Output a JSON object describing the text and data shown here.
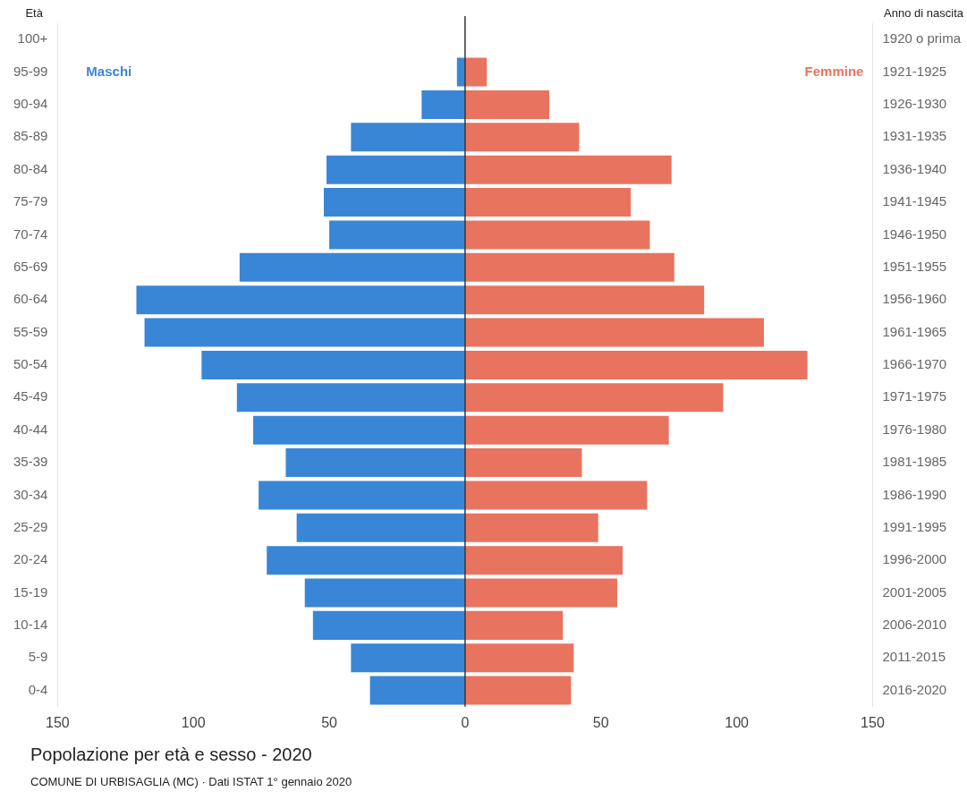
{
  "chart_data": {
    "type": "bar",
    "orientation": "horizontal",
    "title": "Popolazione per età e sesso - 2020",
    "ylabel": "Età",
    "y2label": "Anno di nascita",
    "annotations": [
      "COMUNE DI URBISAGLIA (MC) · Dati ISTAT 1° gennaio 2020"
    ],
    "categories": [
      "100+",
      "95-99",
      "90-94",
      "85-89",
      "80-84",
      "75-79",
      "70-74",
      "65-69",
      "60-64",
      "55-59",
      "50-54",
      "45-49",
      "40-44",
      "35-39",
      "30-34",
      "25-29",
      "20-24",
      "15-19",
      "10-14",
      "5-9",
      "0-4"
    ],
    "y2_categories": [
      "1920 o prima",
      "1921-1925",
      "1926-1930",
      "1931-1935",
      "1936-1940",
      "1941-1945",
      "1946-1950",
      "1951-1955",
      "1956-1960",
      "1961-1965",
      "1966-1970",
      "1971-1975",
      "1976-1980",
      "1981-1985",
      "1986-1990",
      "1991-1995",
      "1996-2000",
      "2001-2005",
      "2006-2010",
      "2011-2015",
      "2016-2020"
    ],
    "series": [
      {
        "name": "Maschi",
        "color": "#3a86d6",
        "values": [
          0,
          -3,
          -16,
          -42,
          -51,
          -52,
          -50,
          -83,
          -121,
          -118,
          -97,
          -84,
          -78,
          -66,
          -76,
          -62,
          -73,
          -59,
          -56,
          -42,
          -35
        ]
      },
      {
        "name": "Femmine",
        "color": "#e8735f",
        "values": [
          0,
          8,
          31,
          42,
          76,
          61,
          68,
          77,
          88,
          110,
          126,
          95,
          75,
          43,
          67,
          49,
          58,
          56,
          36,
          40,
          39
        ]
      }
    ],
    "xlim": [
      -150,
      150
    ],
    "xticks": [
      {
        "value": -150,
        "label": "150"
      },
      {
        "value": -100,
        "label": "100"
      },
      {
        "value": -50,
        "label": "50"
      },
      0,
      50,
      100,
      150
    ],
    "ref_lines": [
      {
        "axis": "x",
        "value": 0,
        "color": "#333333"
      }
    ],
    "stacked": true,
    "grid": false,
    "legend": false
  }
}
